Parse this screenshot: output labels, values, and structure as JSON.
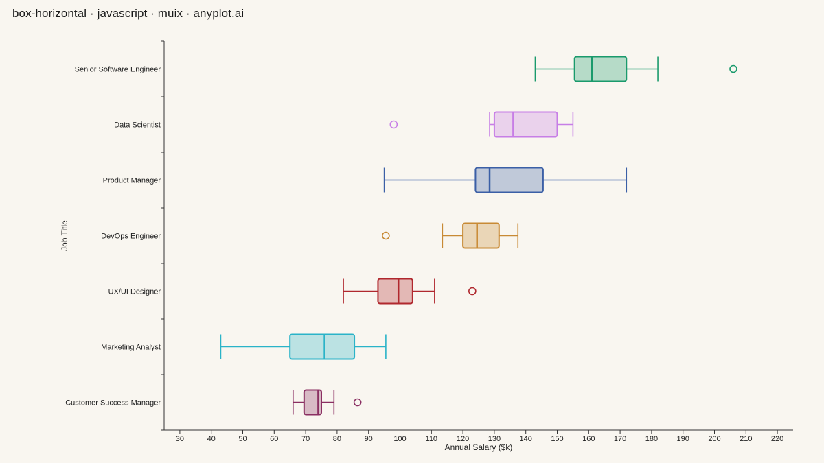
{
  "title": "box-horizontal · javascript · muix · anyplot.ai",
  "chart_data": {
    "type": "box",
    "orientation": "horizontal",
    "title": "box-horizontal · javascript · muix · anyplot.ai",
    "xlabel": "Annual Salary ($k)",
    "ylabel": "Job Title",
    "xlim": [
      25,
      225
    ],
    "xticks": [
      30,
      40,
      50,
      60,
      70,
      80,
      90,
      100,
      110,
      120,
      130,
      140,
      150,
      160,
      170,
      180,
      190,
      200,
      210,
      220
    ],
    "grid": false,
    "legend": "none",
    "categories": [
      "Senior Software Engineer",
      "Data Scientist",
      "Product Manager",
      "DevOps Engineer",
      "UX/UI Designer",
      "Marketing Analyst",
      "Customer Success Manager"
    ],
    "boxes": [
      {
        "category": "Senior Software Engineer",
        "whisker_low": 143,
        "q1": 155.5,
        "median": 161,
        "q3": 172,
        "whisker_high": 182,
        "outliers": [
          206
        ],
        "color": "#1a9a6c"
      },
      {
        "category": "Data Scientist",
        "whisker_low": 128.5,
        "q1": 130,
        "median": 136,
        "q3": 150,
        "whisker_high": 155,
        "outliers": [
          98
        ],
        "color": "#c77ee6"
      },
      {
        "category": "Product Manager",
        "whisker_low": 95,
        "q1": 124,
        "median": 128.5,
        "q3": 145.5,
        "whisker_high": 172,
        "outliers": [],
        "color": "#3b5fa6"
      },
      {
        "category": "DevOps Engineer",
        "whisker_low": 113.5,
        "q1": 120,
        "median": 124.5,
        "q3": 131.5,
        "whisker_high": 137.5,
        "outliers": [
          95.5
        ],
        "color": "#c88a35"
      },
      {
        "category": "UX/UI Designer",
        "whisker_low": 82,
        "q1": 93,
        "median": 99.5,
        "q3": 104,
        "whisker_high": 111,
        "outliers": [
          123
        ],
        "color": "#b0282e"
      },
      {
        "category": "Marketing Analyst",
        "whisker_low": 43,
        "q1": 65,
        "median": 76,
        "q3": 85.5,
        "whisker_high": 95.5,
        "outliers": [],
        "color": "#2ab3c8"
      },
      {
        "category": "Customer Success Manager",
        "whisker_low": 66,
        "q1": 69.5,
        "median": 74,
        "q3": 75,
        "whisker_high": 79,
        "outliers": [
          86.5
        ],
        "color": "#8a2f62"
      }
    ]
  }
}
